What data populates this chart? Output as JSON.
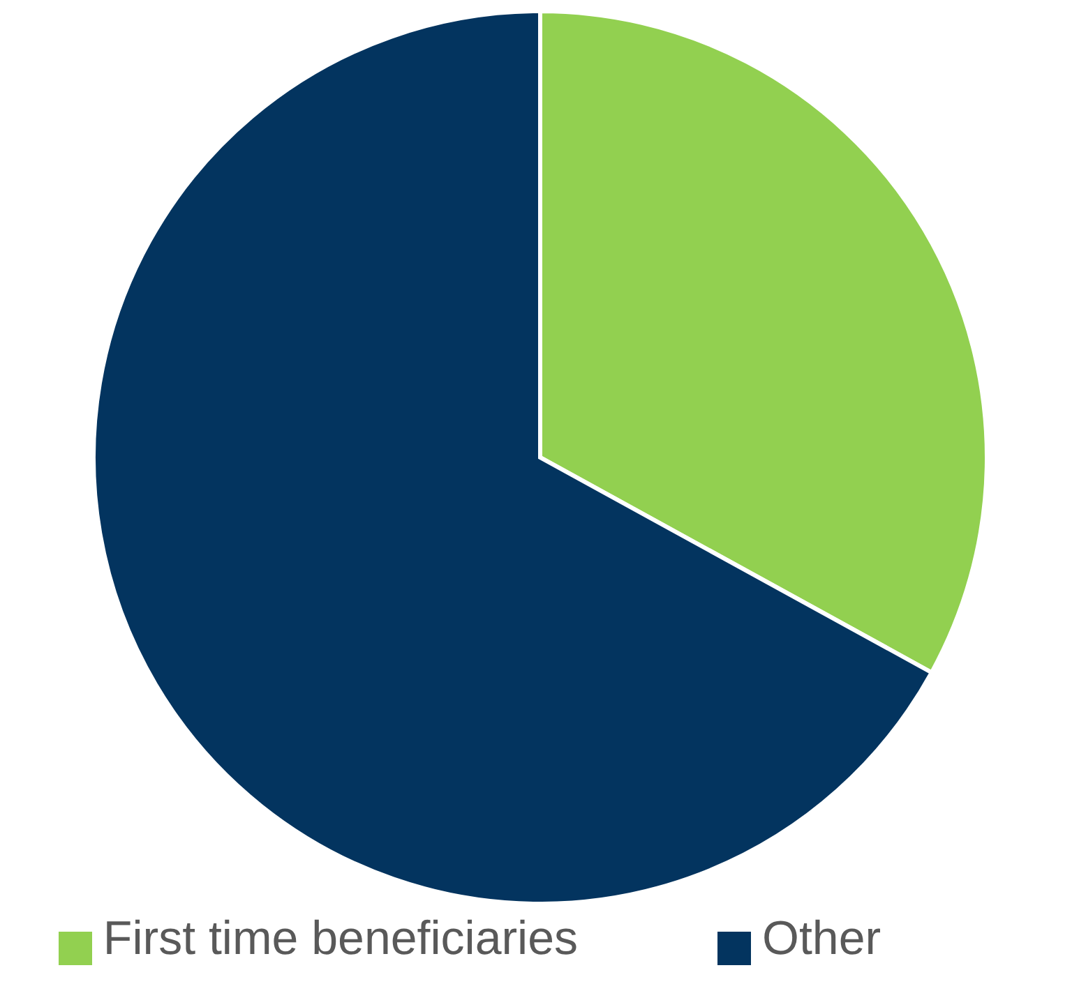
{
  "chart_data": {
    "type": "pie",
    "categories": [
      "First time beneficiaries",
      "Other"
    ],
    "values": [
      33,
      67
    ],
    "colors": [
      "#92d050",
      "#03345f"
    ],
    "legend": "bottom"
  }
}
